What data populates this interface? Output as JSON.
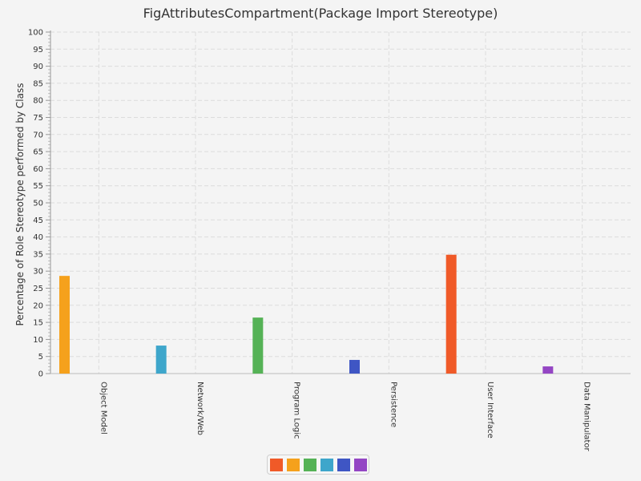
{
  "chart_data": {
    "type": "bar",
    "title": "FigAttributesCompartment(Package Import Stereotype)",
    "xlabel": "",
    "ylabel": "Percentage of Role Stereotype performed by Class",
    "ylim": [
      0,
      100
    ],
    "y_ticks": [
      0,
      5,
      10,
      15,
      20,
      25,
      30,
      35,
      40,
      45,
      50,
      55,
      60,
      65,
      70,
      75,
      80,
      85,
      90,
      95,
      100
    ],
    "categories": [
      "Object Model",
      "Network/Web",
      "Program Logic",
      "Persistence",
      "User Interface",
      "Data Manipulator"
    ],
    "series": [
      {
        "color": "#f05a28",
        "values": [
          0,
          0,
          0,
          0,
          34.8,
          0
        ]
      },
      {
        "color": "#f5a11c",
        "values": [
          28.6,
          0,
          0,
          0,
          0,
          0
        ]
      },
      {
        "color": "#55b256",
        "values": [
          0,
          0,
          16.4,
          0,
          0,
          0
        ]
      },
      {
        "color": "#3ea6cb",
        "values": [
          0,
          8.2,
          0,
          0,
          0,
          0
        ]
      },
      {
        "color": "#3f56c4",
        "values": [
          0,
          0,
          0,
          4.0,
          0,
          0
        ]
      },
      {
        "color": "#9446c4",
        "values": [
          0,
          0,
          0,
          0,
          0,
          2.1
        ]
      }
    ],
    "grid": true,
    "legend_position": "bottom-center"
  }
}
